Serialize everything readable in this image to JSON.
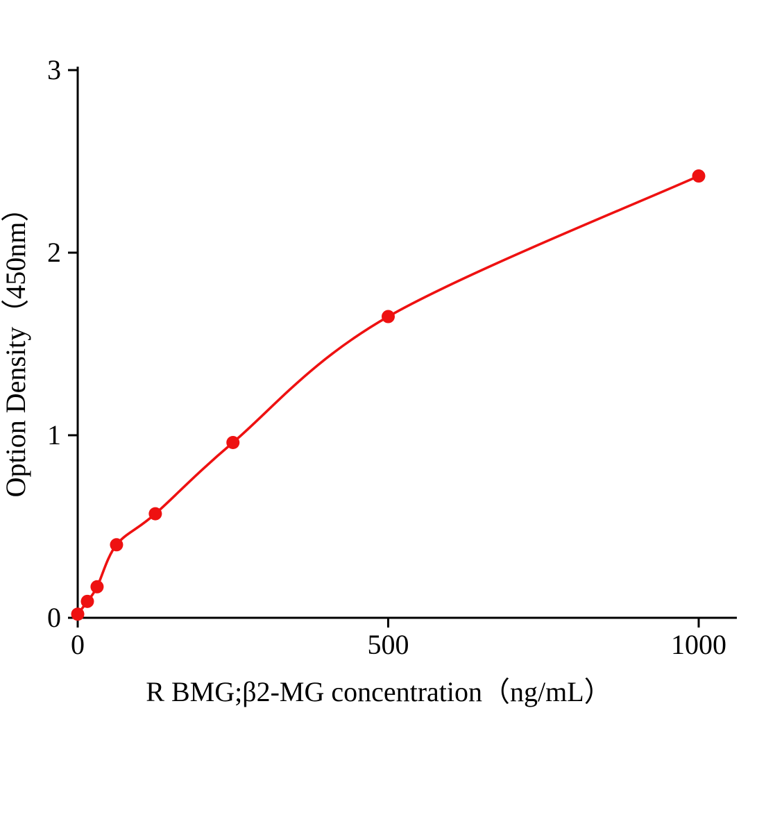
{
  "figure": {
    "background": "#ffffff"
  },
  "chart_data": {
    "type": "scatter",
    "title": "",
    "xlabel": "R BMG;β2-MG concentration（ng/mL）",
    "ylabel": "Option Density（450nm）",
    "x": [
      0,
      15.6,
      31.2,
      62.5,
      125,
      250,
      500,
      1000
    ],
    "y": [
      0.02,
      0.09,
      0.17,
      0.4,
      0.57,
      0.96,
      1.65,
      2.42
    ],
    "xlim": [
      0,
      1000
    ],
    "ylim": [
      0,
      3
    ],
    "x_ticks": [
      "0",
      "500",
      "1000"
    ],
    "x_tick_values": [
      0,
      500,
      1000
    ],
    "y_ticks": [
      "0",
      "1",
      "2",
      "3"
    ],
    "y_tick_values": [
      0,
      1,
      2,
      3
    ],
    "grid": false,
    "legend": "none",
    "curve": "smooth fit through points",
    "line_color": "#ee1111",
    "point_color": "#ee1111",
    "axis_color": "#000000"
  }
}
